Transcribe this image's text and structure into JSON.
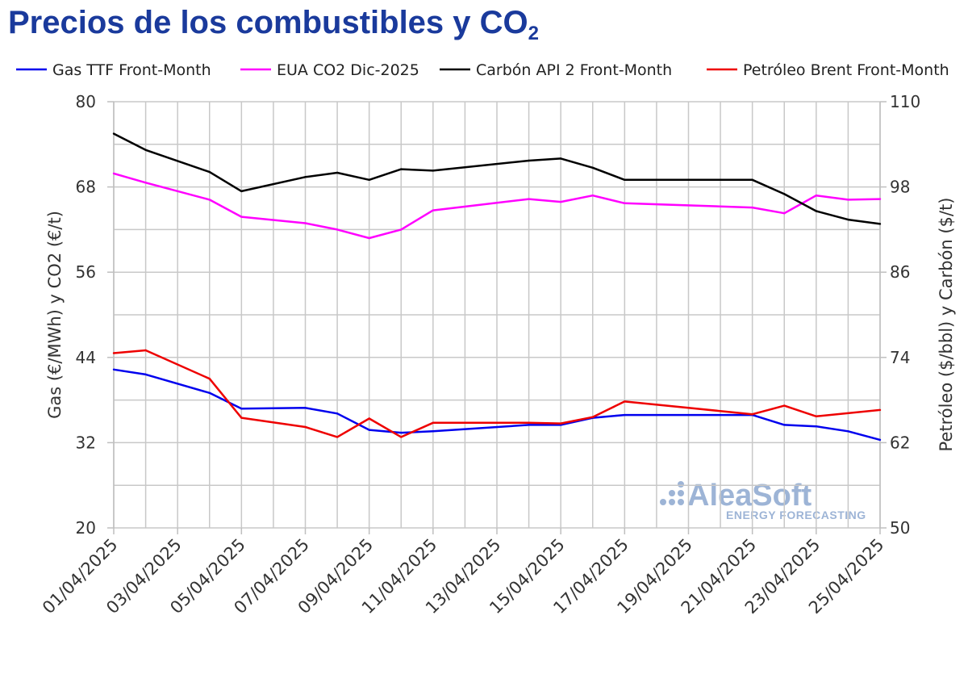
{
  "title": {
    "main": "Precios de los combustibles y CO",
    "sub": "2"
  },
  "watermark": {
    "brand": "AleaSoft",
    "tagline": "ENERGY FORECASTING"
  },
  "chart_data": {
    "type": "line",
    "x": [
      "01/04/2025",
      "02/04/2025",
      "03/04/2025",
      "04/04/2025",
      "05/04/2025",
      "06/04/2025",
      "07/04/2025",
      "08/04/2025",
      "09/04/2025",
      "10/04/2025",
      "11/04/2025",
      "12/04/2025",
      "13/04/2025",
      "14/04/2025",
      "15/04/2025",
      "16/04/2025",
      "17/04/2025",
      "18/04/2025",
      "19/04/2025",
      "20/04/2025",
      "21/04/2025",
      "22/04/2025",
      "23/04/2025",
      "24/04/2025",
      "25/04/2025"
    ],
    "x_tick_labels": [
      "01/04/2025",
      "03/04/2025",
      "05/04/2025",
      "07/04/2025",
      "09/04/2025",
      "11/04/2025",
      "13/04/2025",
      "15/04/2025",
      "17/04/2025",
      "19/04/2025",
      "21/04/2025",
      "23/04/2025",
      "25/04/2025"
    ],
    "left_axis": {
      "label": "Gas (€/MWh) y CO2 (€/t)",
      "min": 20,
      "max": 80,
      "ticks": [
        20,
        32,
        44,
        56,
        68,
        80
      ]
    },
    "right_axis": {
      "label": "Petróleo ($/bbl) y Carbón ($/t)",
      "min": 50,
      "max": 110,
      "ticks": [
        50,
        62,
        74,
        86,
        98,
        110
      ]
    },
    "grid": true,
    "legend": "top",
    "series": [
      {
        "name": "Gas TTF Front-Month",
        "axis": "left",
        "color": "#0000ee",
        "values": [
          42.3,
          41.6,
          null,
          39.0,
          36.8,
          null,
          36.9,
          36.1,
          33.8,
          33.4,
          33.6,
          null,
          null,
          34.5,
          34.5,
          35.5,
          35.9,
          null,
          null,
          null,
          35.9,
          34.5,
          34.3,
          33.6,
          32.4
        ]
      },
      {
        "name": "EUA CO2 Dic-2025",
        "axis": "left",
        "color": "#ff00ff",
        "values": [
          69.9,
          68.6,
          null,
          66.2,
          63.8,
          null,
          62.9,
          62.0,
          60.8,
          62.0,
          64.7,
          null,
          null,
          66.3,
          65.9,
          66.8,
          65.7,
          null,
          null,
          null,
          65.1,
          64.3,
          66.8,
          66.2,
          66.3
        ]
      },
      {
        "name": "Carbón API 2 Front-Month",
        "axis": "right",
        "color": "#000000",
        "values": [
          105.5,
          103.2,
          null,
          100.1,
          97.4,
          null,
          99.4,
          100.0,
          99.0,
          100.5,
          100.3,
          null,
          null,
          101.7,
          102.0,
          100.7,
          99.0,
          null,
          null,
          null,
          99.0,
          97.0,
          94.6,
          93.4,
          92.8
        ]
      },
      {
        "name": "Petróleo Brent Front-Month",
        "axis": "right",
        "color": "#ee0000",
        "values": [
          74.6,
          75.0,
          null,
          71.0,
          65.5,
          null,
          64.2,
          62.8,
          65.4,
          62.8,
          64.8,
          null,
          null,
          64.8,
          64.7,
          65.6,
          67.8,
          null,
          null,
          null,
          66.0,
          67.2,
          65.7,
          null,
          66.6
        ]
      }
    ]
  }
}
